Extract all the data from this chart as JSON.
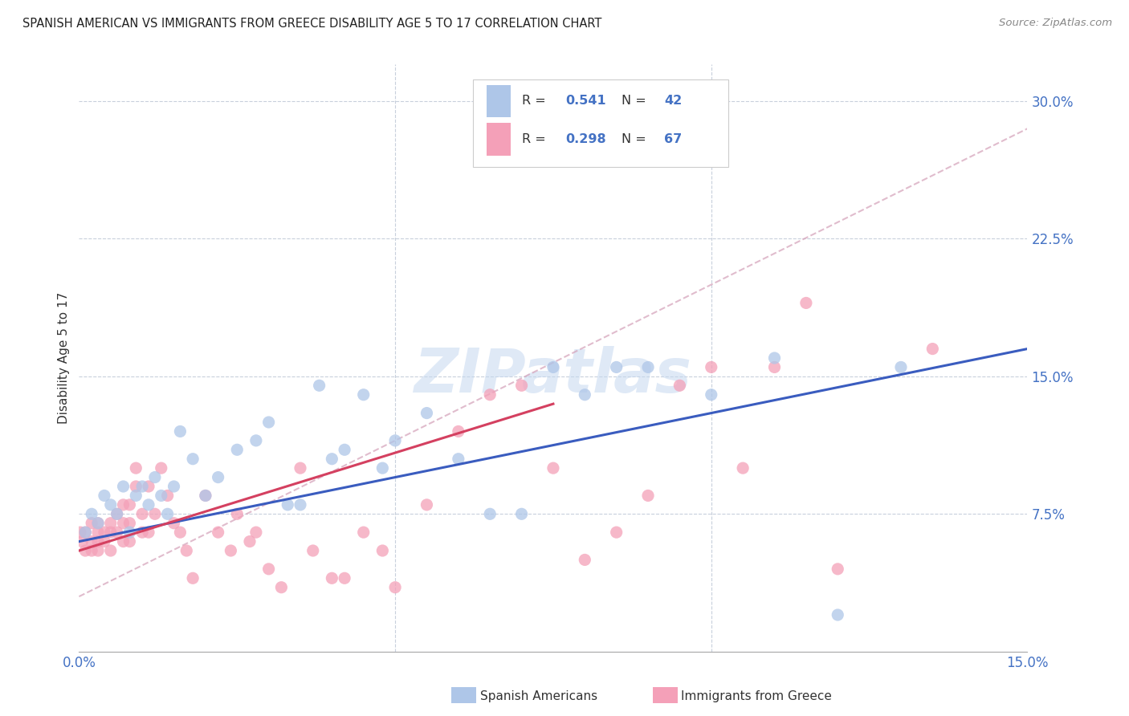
{
  "title": "SPANISH AMERICAN VS IMMIGRANTS FROM GREECE DISABILITY AGE 5 TO 17 CORRELATION CHART",
  "source": "Source: ZipAtlas.com",
  "ylabel": "Disability Age 5 to 17",
  "xlim": [
    0.0,
    0.15
  ],
  "ylim": [
    0.0,
    0.32
  ],
  "watermark": "ZIPatlas",
  "color_blue": "#aec6e8",
  "color_pink": "#f4a0b8",
  "line_color_blue": "#3a5cbf",
  "line_color_pink": "#d44060",
  "line_color_dashed": "#d4a0b8",
  "blue_scatter_x": [
    0.001,
    0.002,
    0.003,
    0.004,
    0.005,
    0.006,
    0.007,
    0.008,
    0.009,
    0.01,
    0.011,
    0.012,
    0.013,
    0.014,
    0.015,
    0.016,
    0.018,
    0.02,
    0.022,
    0.025,
    0.028,
    0.03,
    0.033,
    0.035,
    0.038,
    0.04,
    0.042,
    0.045,
    0.048,
    0.05,
    0.055,
    0.06,
    0.065,
    0.07,
    0.075,
    0.08,
    0.085,
    0.09,
    0.1,
    0.11,
    0.12,
    0.13
  ],
  "blue_scatter_y": [
    0.065,
    0.075,
    0.07,
    0.085,
    0.08,
    0.075,
    0.09,
    0.065,
    0.085,
    0.09,
    0.08,
    0.095,
    0.085,
    0.075,
    0.09,
    0.12,
    0.105,
    0.085,
    0.095,
    0.11,
    0.115,
    0.125,
    0.08,
    0.08,
    0.145,
    0.105,
    0.11,
    0.14,
    0.1,
    0.115,
    0.13,
    0.105,
    0.075,
    0.075,
    0.155,
    0.14,
    0.155,
    0.155,
    0.14,
    0.16,
    0.02,
    0.155
  ],
  "pink_scatter_x": [
    0.0002,
    0.0005,
    0.001,
    0.001,
    0.002,
    0.002,
    0.002,
    0.003,
    0.003,
    0.003,
    0.003,
    0.004,
    0.004,
    0.005,
    0.005,
    0.005,
    0.006,
    0.006,
    0.007,
    0.007,
    0.007,
    0.008,
    0.008,
    0.008,
    0.009,
    0.009,
    0.01,
    0.01,
    0.011,
    0.011,
    0.012,
    0.013,
    0.014,
    0.015,
    0.016,
    0.017,
    0.018,
    0.02,
    0.022,
    0.024,
    0.025,
    0.027,
    0.028,
    0.03,
    0.032,
    0.035,
    0.037,
    0.04,
    0.042,
    0.045,
    0.048,
    0.05,
    0.055,
    0.06,
    0.065,
    0.07,
    0.075,
    0.08,
    0.085,
    0.09,
    0.095,
    0.1,
    0.105,
    0.11,
    0.115,
    0.12,
    0.135
  ],
  "pink_scatter_y": [
    0.065,
    0.06,
    0.055,
    0.065,
    0.055,
    0.06,
    0.07,
    0.055,
    0.06,
    0.065,
    0.07,
    0.06,
    0.065,
    0.055,
    0.065,
    0.07,
    0.065,
    0.075,
    0.06,
    0.07,
    0.08,
    0.06,
    0.07,
    0.08,
    0.09,
    0.1,
    0.065,
    0.075,
    0.065,
    0.09,
    0.075,
    0.1,
    0.085,
    0.07,
    0.065,
    0.055,
    0.04,
    0.085,
    0.065,
    0.055,
    0.075,
    0.06,
    0.065,
    0.045,
    0.035,
    0.1,
    0.055,
    0.04,
    0.04,
    0.065,
    0.055,
    0.035,
    0.08,
    0.12,
    0.14,
    0.145,
    0.1,
    0.05,
    0.065,
    0.085,
    0.145,
    0.155,
    0.1,
    0.155,
    0.19,
    0.045,
    0.165
  ],
  "blue_line_x0": 0.0,
  "blue_line_x1": 0.15,
  "blue_line_y0": 0.06,
  "blue_line_y1": 0.165,
  "pink_line_x0": 0.0,
  "pink_line_x1": 0.075,
  "pink_line_y0": 0.055,
  "pink_line_y1": 0.135,
  "dashed_line_x0": 0.0,
  "dashed_line_x1": 0.15,
  "dashed_line_y0": 0.03,
  "dashed_line_y1": 0.285,
  "ytick_positions": [
    0.075,
    0.15,
    0.225,
    0.3
  ],
  "ytick_labels": [
    "7.5%",
    "15.0%",
    "22.5%",
    "30.0%"
  ],
  "xtick_positions": [
    0.0,
    0.05,
    0.1,
    0.15
  ],
  "xtick_show": [
    "0.0%",
    "",
    "",
    "15.0%"
  ],
  "legend_label1": "Spanish Americans",
  "legend_label2": "Immigrants from Greece"
}
